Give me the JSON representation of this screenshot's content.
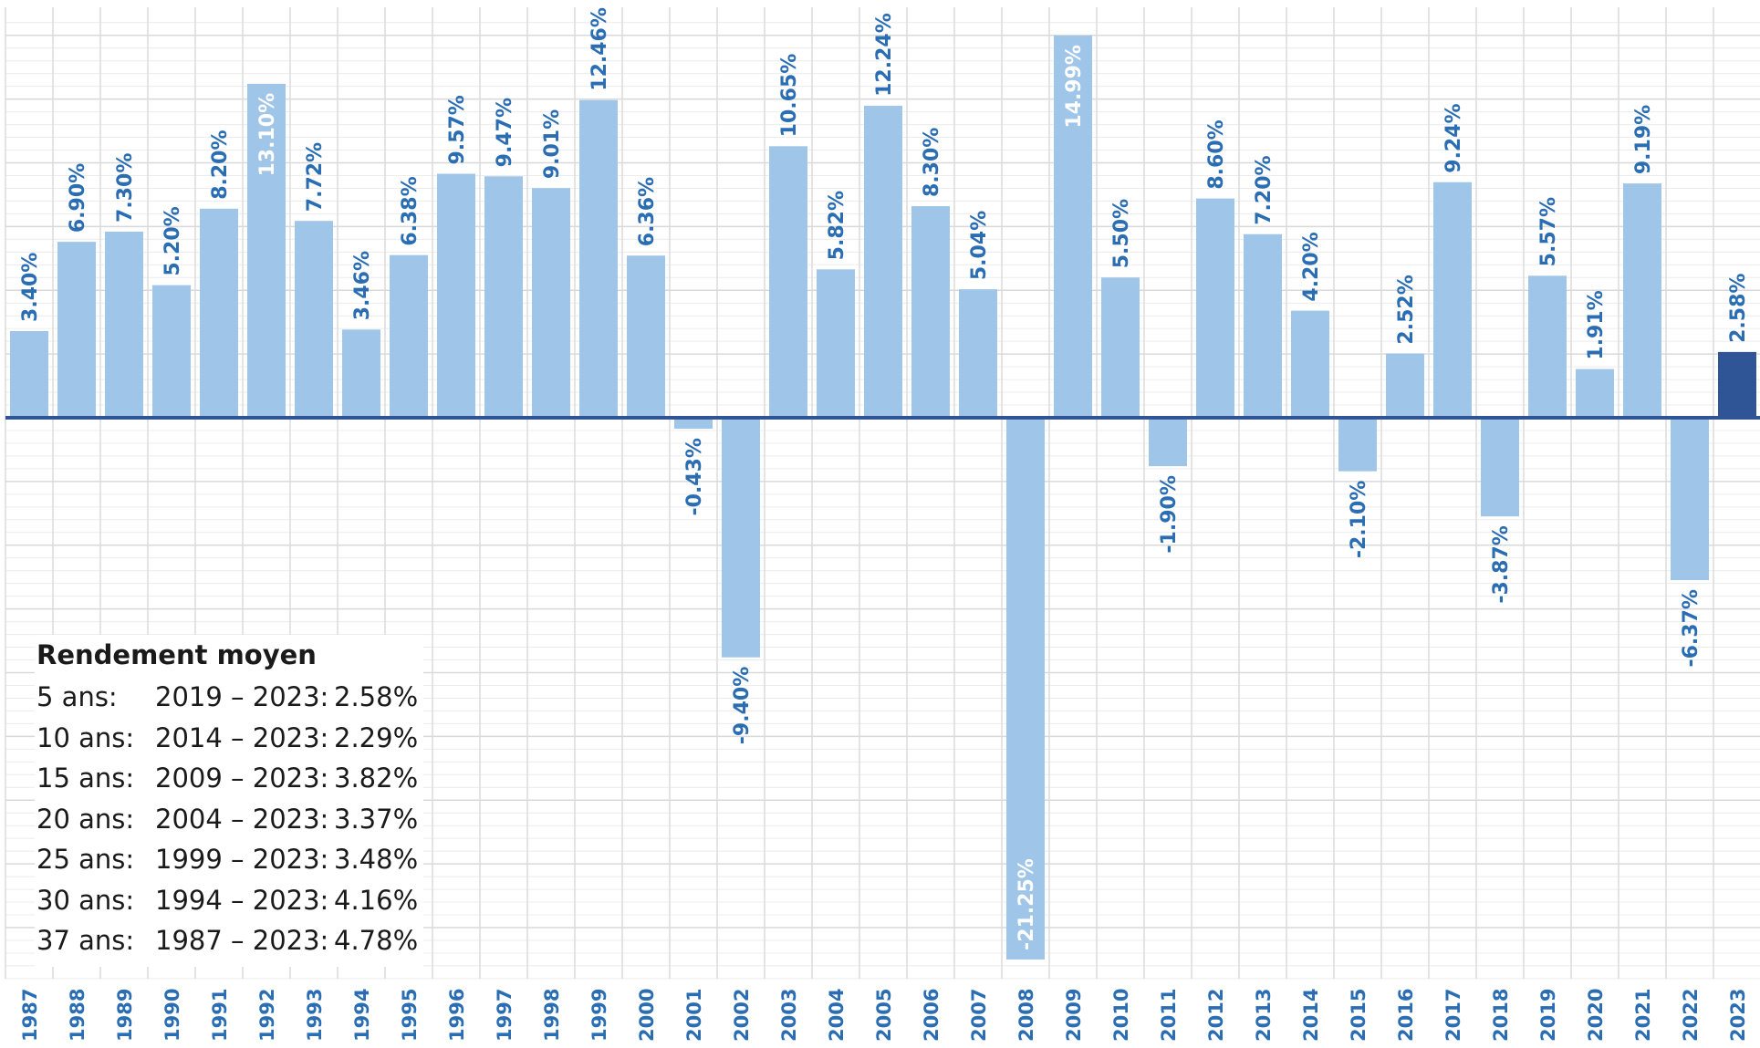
{
  "chart_data": {
    "type": "bar",
    "title": "",
    "xlabel": "",
    "ylabel": "",
    "ylim": [
      -23,
      16
    ],
    "grid": true,
    "categories": [
      "1987",
      "1988",
      "1989",
      "1990",
      "1991",
      "1992",
      "1993",
      "1994",
      "1995",
      "1996",
      "1997",
      "1998",
      "1999",
      "2000",
      "2001",
      "2002",
      "2003",
      "2004",
      "2005",
      "2006",
      "2007",
      "2008",
      "2009",
      "2010",
      "2011",
      "2012",
      "2013",
      "2014",
      "2015",
      "2016",
      "2017",
      "2018",
      "2019",
      "2020",
      "2021",
      "2022",
      "2023"
    ],
    "values": [
      3.4,
      6.9,
      7.3,
      5.2,
      8.2,
      13.1,
      7.72,
      3.46,
      6.38,
      9.57,
      9.47,
      9.01,
      12.46,
      6.36,
      -0.43,
      -9.4,
      10.65,
      5.82,
      12.24,
      8.3,
      5.04,
      -21.25,
      14.99,
      5.5,
      -1.9,
      8.6,
      7.2,
      4.2,
      -2.1,
      2.52,
      9.24,
      -3.87,
      5.57,
      1.91,
      9.19,
      -6.37,
      2.58
    ],
    "data_labels": [
      "3.40%",
      "6.90%",
      "7.30%",
      "5.20%",
      "8.20%",
      "13.10%",
      "7.72%",
      "3.46%",
      "6.38%",
      "9.57%",
      "9.47%",
      "9.01%",
      "12.46%",
      "6.36%",
      "-0.43%",
      "-9.40%",
      "10.65%",
      "5.82%",
      "12.24%",
      "8.30%",
      "5.04%",
      "-21.25%",
      "14.99%",
      "5.50%",
      "-1.90%",
      "8.60%",
      "7.20%",
      "4.20%",
      "-2.10%",
      "2.52%",
      "9.24%",
      "-3.87%",
      "5.57%",
      "1.91%",
      "9.19%",
      "-6.37%",
      "2.58%"
    ],
    "highlight_category": "2023"
  },
  "colors": {
    "bar": "#9fc5e8",
    "bar_highlight": "#2f5597",
    "label": "#2a6db3",
    "label_inside": "#ffffff",
    "zero_line": "#2f5597",
    "grid_major": "#d9d9d9",
    "grid_minor": "#ececec"
  },
  "average_box": {
    "title": "Rendement moyen",
    "rows": [
      {
        "label": "5 ans:",
        "range": "2019 – 2023:",
        "value": "2.58%"
      },
      {
        "label": "10 ans:",
        "range": "2014 – 2023:",
        "value": "2.29%"
      },
      {
        "label": "15 ans:",
        "range": "2009 – 2023:",
        "value": "3.82%"
      },
      {
        "label": "20 ans:",
        "range": "2004 – 2023:",
        "value": "3.37%"
      },
      {
        "label": "25 ans:",
        "range": "1999 – 2023:",
        "value": "3.48%"
      },
      {
        "label": "30 ans:",
        "range": "1994 – 2023:",
        "value": "4.16%"
      },
      {
        "label": "37 ans:",
        "range": "1987 – 2023:",
        "value": "4.78%"
      }
    ]
  }
}
